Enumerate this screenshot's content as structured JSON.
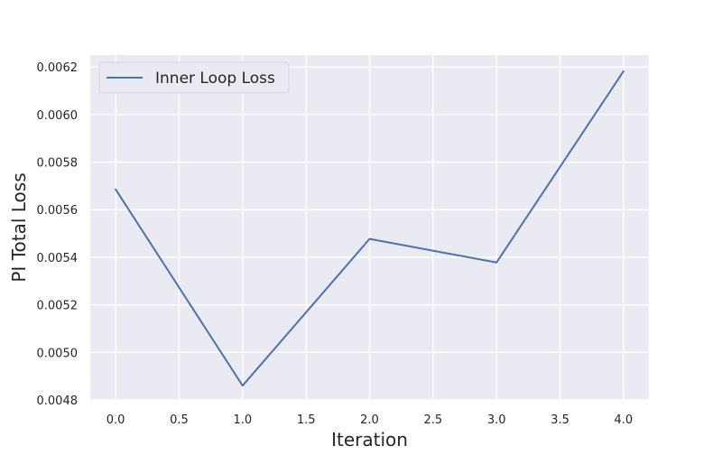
{
  "chart_data": {
    "type": "line",
    "title": "",
    "xlabel": "Iteration",
    "ylabel": "PI Total Loss",
    "x": [
      0,
      1,
      2,
      3,
      4
    ],
    "series": [
      {
        "name": "Inner Loop Loss",
        "color": "#4c72b0",
        "values": [
          0.005685,
          0.00486,
          0.005477,
          0.005378,
          0.006182
        ]
      }
    ],
    "xlim": [
      -0.2,
      4.2
    ],
    "ylim": [
      0.0048,
      0.00625
    ],
    "xticks": [
      {
        "value": 0.0,
        "label": "0.0"
      },
      {
        "value": 0.5,
        "label": "0.5"
      },
      {
        "value": 1.0,
        "label": "1.0"
      },
      {
        "value": 1.5,
        "label": "1.5"
      },
      {
        "value": 2.0,
        "label": "2.0"
      },
      {
        "value": 2.5,
        "label": "2.5"
      },
      {
        "value": 3.0,
        "label": "3.0"
      },
      {
        "value": 3.5,
        "label": "3.5"
      },
      {
        "value": 4.0,
        "label": "4.0"
      }
    ],
    "yticks": [
      {
        "value": 0.0048,
        "label": "0.0048"
      },
      {
        "value": 0.005,
        "label": "0.0050"
      },
      {
        "value": 0.0052,
        "label": "0.0052"
      },
      {
        "value": 0.0054,
        "label": "0.0054"
      },
      {
        "value": 0.0056,
        "label": "0.0056"
      },
      {
        "value": 0.0058,
        "label": "0.0058"
      },
      {
        "value": 0.006,
        "label": "0.0060"
      },
      {
        "value": 0.0062,
        "label": "0.0062"
      }
    ],
    "grid": true,
    "legend_position": "top-left",
    "style": {
      "plot_background": "#eaeaf2",
      "grid_color": "#ffffff",
      "text_color": "#262626"
    }
  }
}
